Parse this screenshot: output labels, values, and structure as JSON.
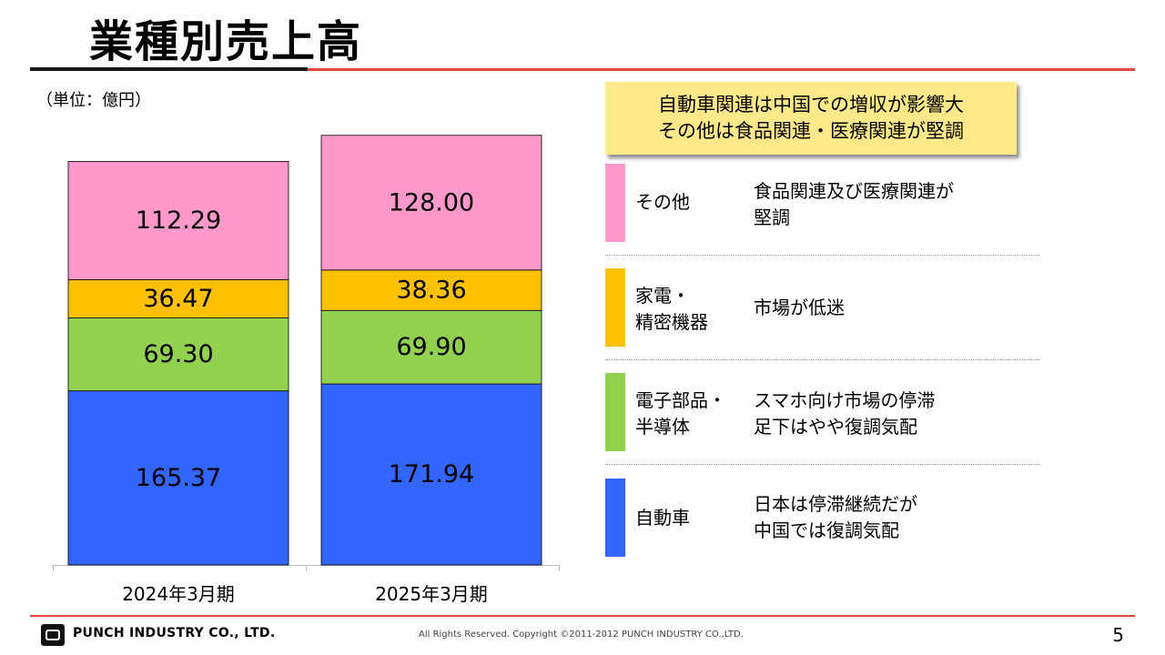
{
  "title": "業種別売上高",
  "unit_note": "（単位：億円）",
  "chart_data": {
    "type": "bar",
    "stacked": true,
    "categories": [
      "2024年3月期",
      "2025年3月期"
    ],
    "series": [
      {
        "name": "自動車",
        "values": [
          165.37,
          171.94
        ],
        "color": "#3366ff"
      },
      {
        "name": "電子部品・半導体",
        "values": [
          69.3,
          69.9
        ],
        "color": "#92d050"
      },
      {
        "name": "家電・精密機器",
        "values": [
          36.47,
          38.36
        ],
        "color": "#ffc000"
      },
      {
        "name": "その他",
        "values": [
          112.29,
          128.0
        ],
        "color": "#ff99cc"
      }
    ],
    "value_labels": [
      [
        "165.37",
        "171.94"
      ],
      [
        "69.30",
        "69.90"
      ],
      [
        "36.47",
        "38.36"
      ],
      [
        "112.29",
        "128.00"
      ]
    ],
    "ylim": [
      0,
      408
    ]
  },
  "callout": {
    "line1": "自動車関連は中国での増収が影響大",
    "line2": "その他は食品関連・医療関連が堅調"
  },
  "legend": [
    {
      "name_lines": [
        "その他"
      ],
      "desc_lines": [
        "食品関連及び医療関連が",
        "堅調"
      ],
      "color": "#ff99cc"
    },
    {
      "name_lines": [
        "家電・",
        "精密機器"
      ],
      "desc_lines": [
        "市場が低迷"
      ],
      "color": "#ffc000"
    },
    {
      "name_lines": [
        "電子部品・",
        "半導体"
      ],
      "desc_lines": [
        "スマホ向け市場の停滞",
        "足下はやや復調気配"
      ],
      "color": "#92d050"
    },
    {
      "name_lines": [
        "自動車"
      ],
      "desc_lines": [
        "日本は停滞継続だが",
        "中国では復調気配"
      ],
      "color": "#3366ff"
    }
  ],
  "footer": {
    "company": "PUNCH INDUSTRY CO., LTD.",
    "copyright": "All Rights Reserved. Copyright ©2011-2012  PUNCH  INDUSTRY  CO.,LTD.",
    "page": "5"
  }
}
